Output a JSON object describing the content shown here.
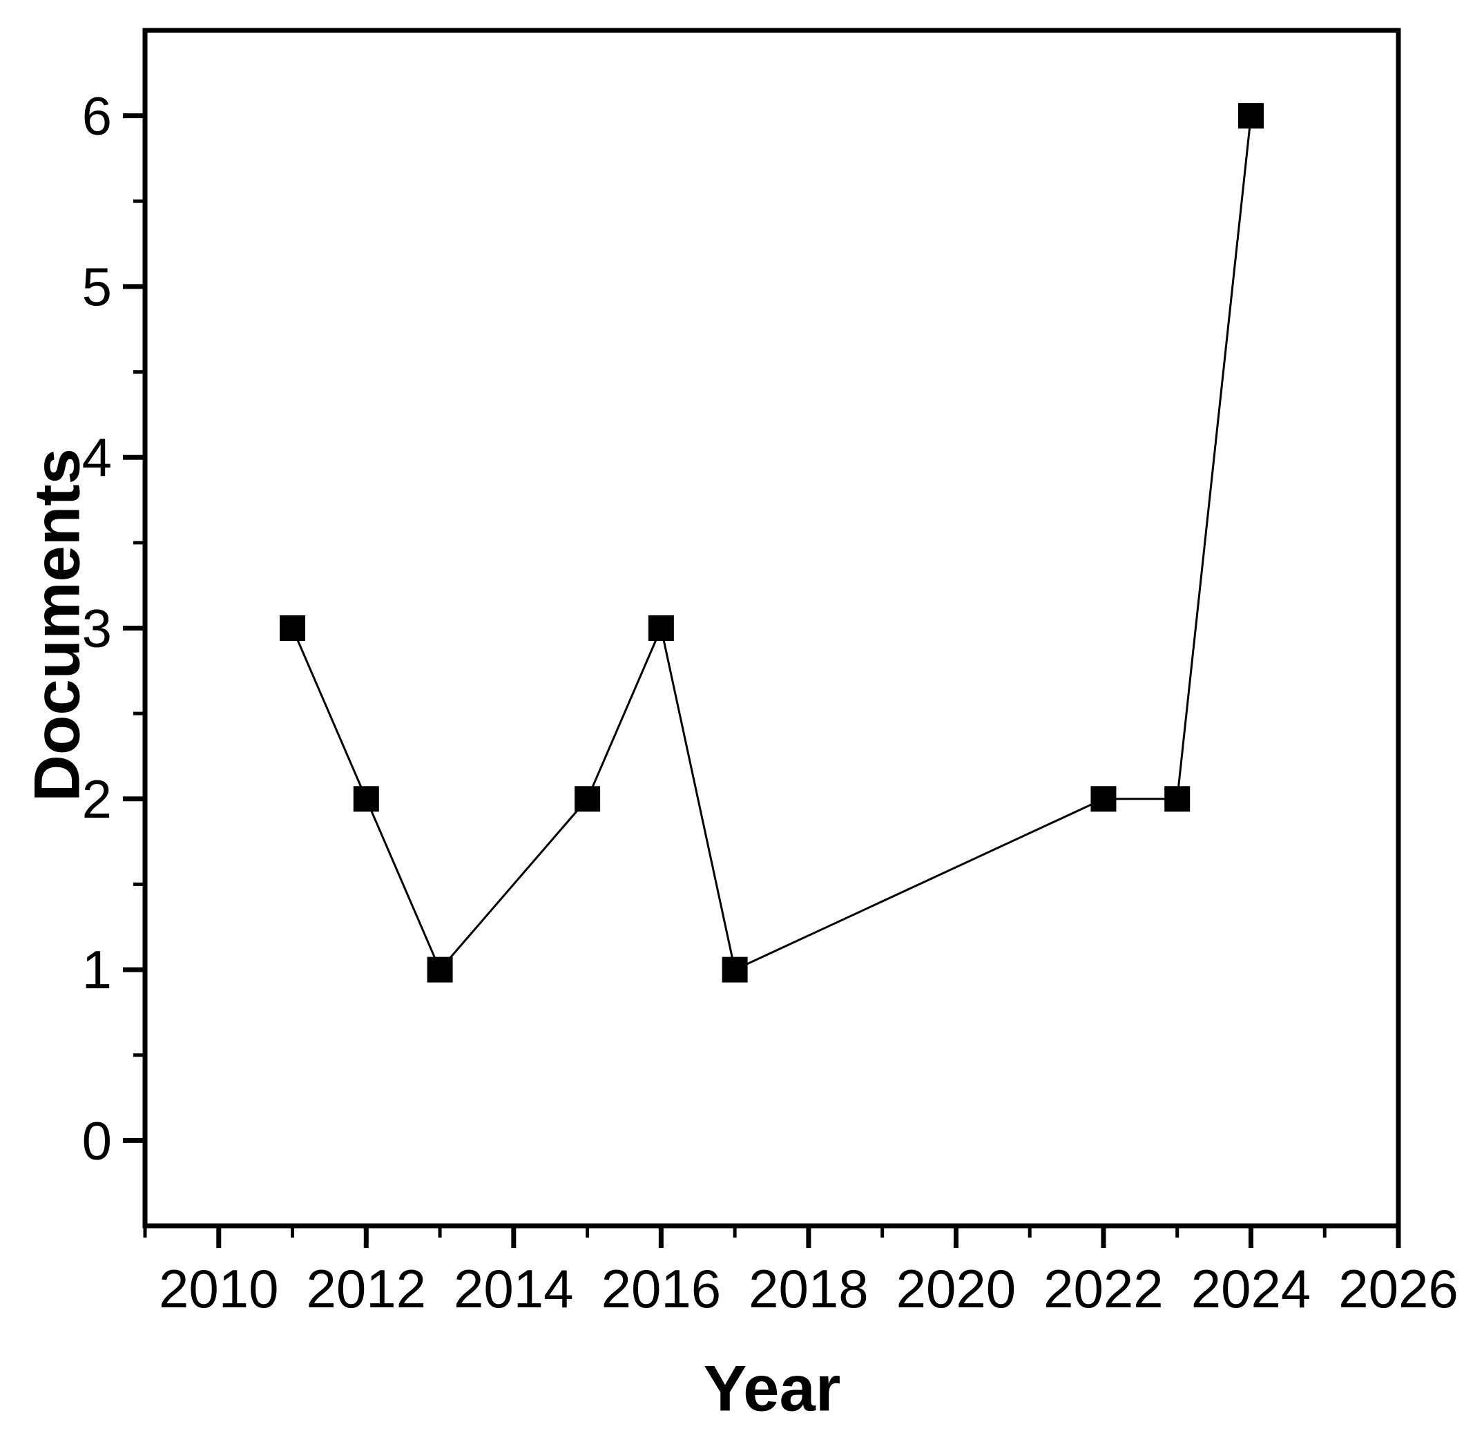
{
  "figure": {
    "background": "#ffffff"
  },
  "chart_data": {
    "type": "line",
    "title": "",
    "xlabel": "Year",
    "ylabel": "Documents",
    "series": [
      {
        "name": "Documents",
        "x": [
          2011,
          2012,
          2013,
          2015,
          2016,
          2017,
          2022,
          2023,
          2024
        ],
        "y": [
          3,
          2,
          1,
          2,
          3,
          1,
          2,
          2,
          6
        ]
      }
    ],
    "xlim": [
      2009,
      2026
    ],
    "ylim": [
      -0.5,
      6.5
    ],
    "x_major_ticks": [
      2010,
      2012,
      2014,
      2016,
      2018,
      2020,
      2022,
      2024,
      2026
    ],
    "x_minor_ticks": [
      2009,
      2011,
      2013,
      2015,
      2017,
      2019,
      2021,
      2023,
      2025
    ],
    "y_major_ticks": [
      0,
      1,
      2,
      3,
      4,
      5,
      6
    ],
    "y_minor_ticks": [
      0.5,
      1.5,
      2.5,
      3.5,
      4.5,
      5.5
    ],
    "grid": false,
    "legend_position": "none",
    "marker": "filled-square",
    "tick_direction": "out",
    "colors": {
      "line": "#000000",
      "marker": "#000000",
      "axis": "#000000",
      "text": "#000000",
      "background": "#ffffff"
    }
  }
}
